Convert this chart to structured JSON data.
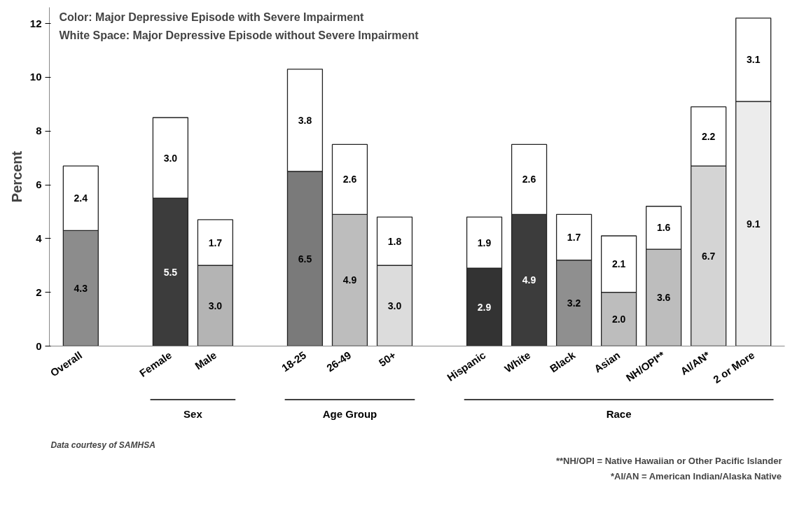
{
  "chart_data": {
    "type": "bar",
    "stacked": true,
    "title": "Color:  Major Depressive Episode with Severe Impairment",
    "subtitle": "White Space:  Major Depressive Episode without Severe Impairment",
    "ylabel": "Percent",
    "categories": [
      "Overall",
      null,
      "Female",
      "Male",
      null,
      "18-25",
      "26-49",
      "50+",
      null,
      "Hispanic",
      "White",
      "Black",
      "Asian",
      "NH/OPI**",
      "AI/AN*",
      "2 or More"
    ],
    "series": [
      {
        "colors": [
          "#8c8c8c",
          null,
          "#3c3c3c",
          "#b4b4b4",
          null,
          "#7a7a7a",
          "#bdbdbd",
          "#dcdcdc",
          null,
          "#333333",
          "#3c3c3c",
          "#8f8f8f",
          "#bdbdbd",
          "#bdbdbd",
          "#d4d4d4",
          "#ececec"
        ],
        "values": [
          4.3,
          null,
          5.5,
          3.0,
          null,
          6.5,
          4.9,
          3.0,
          null,
          2.9,
          4.9,
          3.2,
          2.0,
          3.6,
          6.7,
          9.1
        ],
        "value_labels": [
          "4.3",
          null,
          "5.5",
          "3.0",
          null,
          "6.5",
          "4.9",
          "3.0",
          null,
          "2.9",
          "4.9",
          "3.2",
          "2.0",
          "3.6",
          "6.7",
          "9.1"
        ]
      },
      {
        "color": "#ffffff",
        "values": [
          2.4,
          null,
          3.0,
          1.7,
          null,
          3.8,
          2.6,
          1.8,
          null,
          1.9,
          2.6,
          1.7,
          2.1,
          1.6,
          2.2,
          3.1
        ],
        "value_labels": [
          "2.4",
          null,
          "3.0",
          "1.7",
          null,
          "3.8",
          "2.6",
          "1.8",
          null,
          "1.9",
          "2.6",
          "1.7",
          "2.1",
          "1.6",
          "2.2",
          "3.1"
        ]
      }
    ],
    "ylim": [
      0,
      12.6
    ],
    "yticks": [
      0,
      2,
      4,
      6,
      8,
      10,
      12
    ],
    "grid": false,
    "annotations": [
      "Sex",
      "Age Group",
      "Race",
      "Data courtesy of SAMHSA",
      "**NH/OPI = Native Hawaiian or Other Pacific Islander",
      "*AI/AN = American Indian/Alaska Native"
    ]
  }
}
